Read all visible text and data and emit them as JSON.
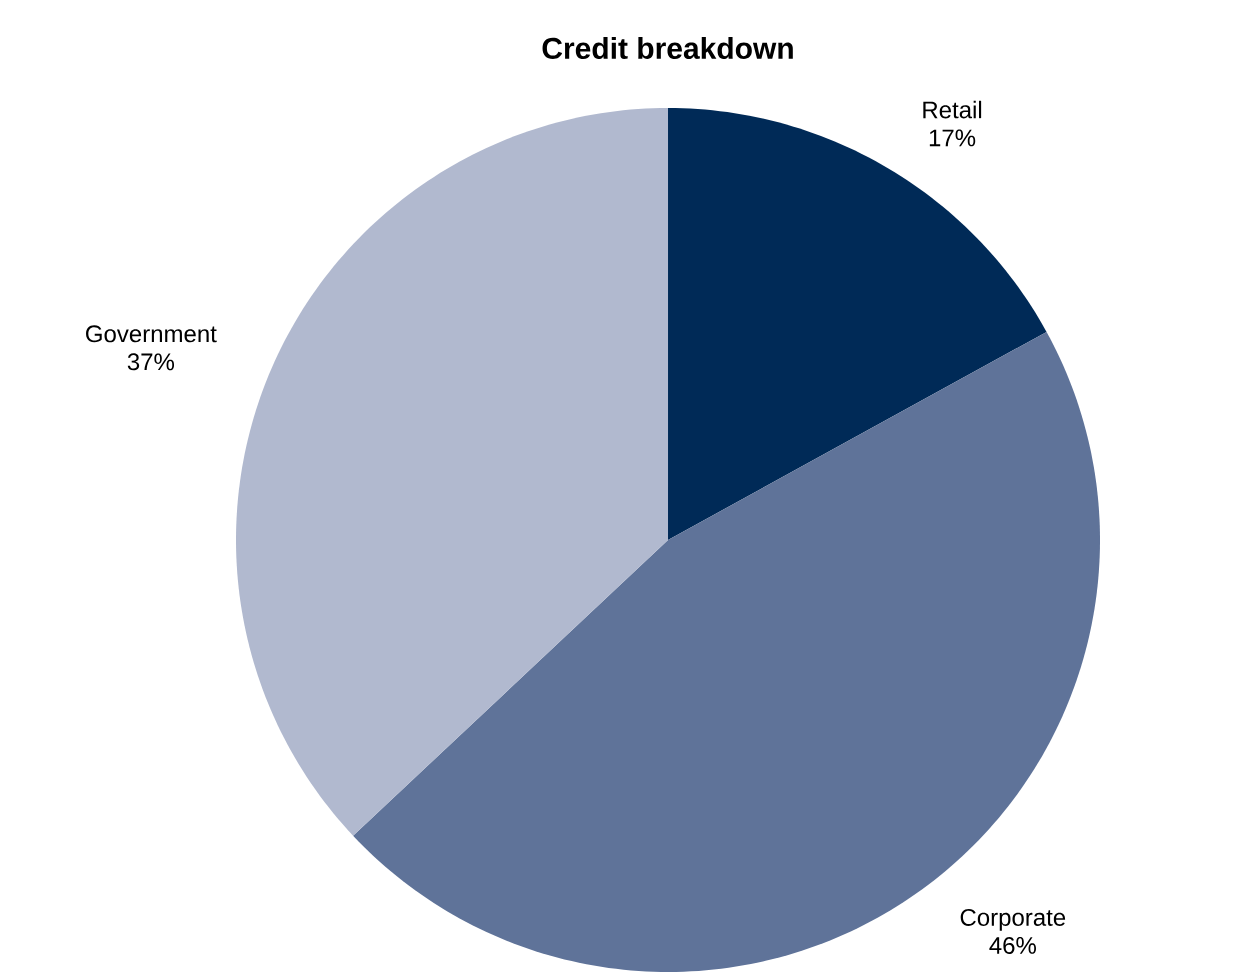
{
  "chart_data": {
    "type": "pie",
    "title": "Credit breakdown",
    "categories": [
      "Retail",
      "Corporate",
      "Government"
    ],
    "values": [
      17,
      46,
      37
    ],
    "value_labels": [
      "17%",
      "46%",
      "37%"
    ],
    "colors": [
      "#002a57",
      "#5f7399",
      "#b1b9cf"
    ]
  }
}
